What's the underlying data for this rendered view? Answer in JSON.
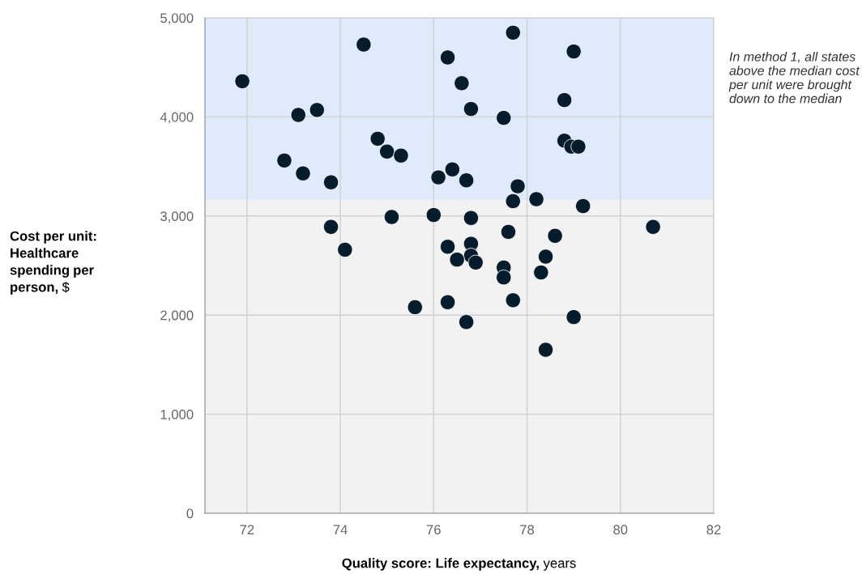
{
  "chart_data": {
    "type": "scatter",
    "xlabel": "Quality score: Life expectancy, years",
    "ylabel": "Cost per unit: Healthcare spending per person, $",
    "xlim": [
      71.1,
      82
    ],
    "ylim": [
      0,
      5000
    ],
    "xticks": [
      72,
      74,
      76,
      78,
      80,
      82
    ],
    "yticks": [
      {
        "value": 0,
        "label": "0"
      },
      {
        "value": 1000,
        "label": "1,000"
      },
      {
        "value": 2000,
        "label": "2,000"
      },
      {
        "value": 3000,
        "label": "3,000"
      },
      {
        "value": 4000,
        "label": "4,000"
      },
      {
        "value": 5000,
        "label": "5,000"
      }
    ],
    "grid": true,
    "marker": "circle",
    "bands": [
      {
        "axis": "y",
        "from": 3160,
        "to": 5000,
        "color": "#dfeafb",
        "label": "In method 1, all states above the median cost per unit were brought down to the median"
      }
    ],
    "series": [
      {
        "color": "#051c2c",
        "x": [
          71.9,
          74.5,
          73.1,
          73.5,
          72.8,
          73.2,
          73.8,
          74.8,
          75.0,
          75.3,
          76.1,
          76.4,
          76.3,
          76.6,
          76.8,
          76.7,
          77.7,
          77.5,
          77.8,
          77.7,
          78.2,
          78.8,
          79.0,
          78.8,
          78.95,
          79.1,
          79.2,
          80.7,
          73.8,
          74.1,
          75.1,
          76.0,
          76.8,
          76.3,
          76.8,
          76.8,
          76.5,
          76.9,
          77.6,
          78.6,
          78.4,
          78.3,
          77.5,
          77.5,
          77.7,
          76.3,
          75.6,
          76.7,
          79.0,
          78.4
        ],
        "values": [
          4360,
          4730,
          4020,
          4070,
          3560,
          3430,
          3340,
          3780,
          3650,
          3610,
          3390,
          3470,
          4600,
          4340,
          4080,
          3360,
          4850,
          3990,
          3300,
          3150,
          3170,
          4170,
          4660,
          3760,
          3700,
          3700,
          3100,
          2890,
          2890,
          2660,
          2990,
          3010,
          2980,
          2690,
          2720,
          2600,
          2560,
          2530,
          2840,
          2800,
          2590,
          2430,
          2480,
          2380,
          2150,
          2130,
          2080,
          1930,
          1980,
          1650
        ]
      }
    ]
  }
}
